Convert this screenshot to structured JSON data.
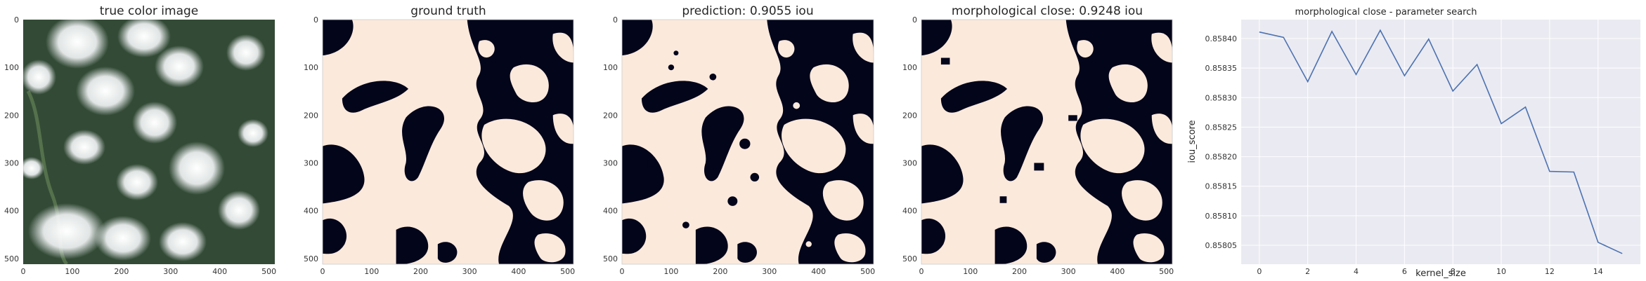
{
  "colors": {
    "mask_foreground": "#fbe9dc",
    "mask_background": "#03051a",
    "line": "#4c72b0",
    "plot_bg": "#eaeaf2",
    "grid": "#ffffff",
    "tick_text": "#333333"
  },
  "chart_data": [
    {
      "type": "image",
      "title": "true color image",
      "image": "satellite-true-color",
      "x_ticks": [
        "0",
        "100",
        "200",
        "300",
        "400",
        "500"
      ],
      "y_ticks": [
        "0",
        "100",
        "200",
        "300",
        "400",
        "500"
      ],
      "xlim": [
        0,
        512
      ],
      "ylim": [
        512,
        0
      ]
    },
    {
      "type": "image",
      "title": "ground truth",
      "image": "binary-cloud-mask",
      "x_ticks": [
        "0",
        "100",
        "200",
        "300",
        "400",
        "500"
      ],
      "y_ticks": [
        "0",
        "100",
        "200",
        "300",
        "400",
        "500"
      ],
      "xlim": [
        0,
        512
      ],
      "ylim": [
        512,
        0
      ]
    },
    {
      "type": "image",
      "title": "prediction: 0.9055 iou",
      "image": "binary-cloud-mask",
      "x_ticks": [
        "0",
        "100",
        "200",
        "300",
        "400",
        "500"
      ],
      "y_ticks": [
        "0",
        "100",
        "200",
        "300",
        "400",
        "500"
      ],
      "xlim": [
        0,
        512
      ],
      "ylim": [
        512,
        0
      ]
    },
    {
      "type": "image",
      "title": "morphological close: 0.9248 iou",
      "image": "binary-cloud-mask",
      "x_ticks": [
        "0",
        "100",
        "200",
        "300",
        "400",
        "500"
      ],
      "y_ticks": [
        "0",
        "100",
        "200",
        "300",
        "400",
        "500"
      ],
      "xlim": [
        0,
        512
      ],
      "ylim": [
        512,
        0
      ]
    },
    {
      "type": "line",
      "title": "morphological close - parameter search",
      "xlabel": "kernel_size",
      "ylabel": "iou_score",
      "x": [
        0,
        1,
        2,
        3,
        4,
        5,
        6,
        7,
        8,
        9,
        10,
        11,
        12,
        13,
        14,
        15
      ],
      "y": [
        0.858411,
        0.858402,
        0.858327,
        0.858412,
        0.858339,
        0.858414,
        0.858337,
        0.858399,
        0.858311,
        0.858356,
        0.858256,
        0.858284,
        0.858175,
        0.858174,
        0.858055,
        0.858036
      ],
      "xlim": [
        -0.75,
        15.75
      ],
      "ylim": [
        0.858018,
        0.858432
      ],
      "x_ticks": [
        0,
        2,
        4,
        6,
        8,
        10,
        12,
        14
      ],
      "x_tick_labels": [
        "0",
        "2",
        "4",
        "6",
        "8",
        "10",
        "12",
        "14"
      ],
      "y_ticks": [
        0.85805,
        0.8581,
        0.85815,
        0.8582,
        0.85825,
        0.8583,
        0.85835,
        0.8584
      ],
      "y_tick_labels": [
        "0.85805",
        "0.85810",
        "0.85815",
        "0.85820",
        "0.85825",
        "0.85830",
        "0.85835",
        "0.85840"
      ],
      "grid": true,
      "legend": false
    }
  ]
}
